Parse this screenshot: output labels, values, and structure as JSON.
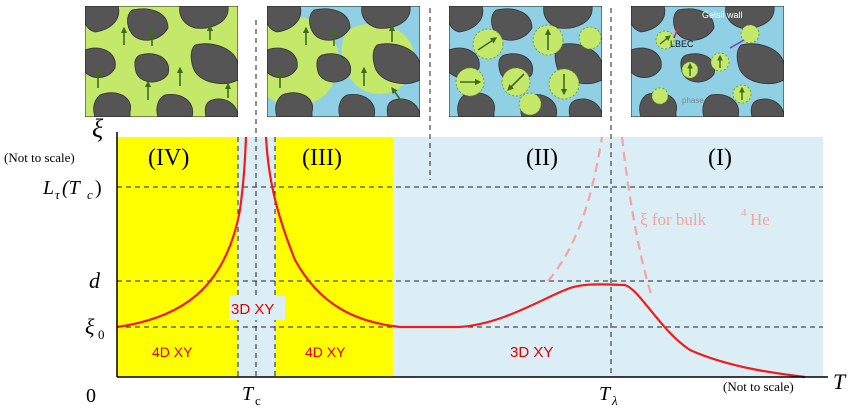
{
  "axes": {
    "y_symbol": "ξ",
    "y_note": "(Not to scale)",
    "x_symbol": "T",
    "x_note": "(Not to scale)",
    "origin": "0",
    "y_ticks": {
      "L_main": "L",
      "L_sub": "τ",
      "L_arg": "(T",
      "L_arg_sub": "c",
      "L_close": ")",
      "d": "d",
      "xi0_main": "ξ",
      "xi0_sub": "0"
    },
    "x_ticks": {
      "tc_main": "T",
      "tc_sub": "c",
      "tl_main": "T",
      "tl_sub": "λ"
    }
  },
  "regions": {
    "IV": "(IV)",
    "III": "(III)",
    "II": "(II)",
    "I": "(I)"
  },
  "labels": {
    "left_4dxy": "4D XY",
    "right_4dxy": "4D XY",
    "center_3dxy": "3D XY",
    "mid_3dxy": "3D XY",
    "bulk_prefix": "ξ for bulk",
    "bulk_sup": "4",
    "bulk_suffix": "He"
  },
  "insets": {
    "gelsil_wall": "Gelsil wall",
    "lbec": "LBEC",
    "phase": "phase"
  },
  "colors": {
    "yellow": "#ffff00",
    "light_blue": "#dbeef6",
    "curve": "#ee1c1c",
    "bulk_dashed": "#f4a5a0",
    "inset_green": "#c4e86a",
    "inset_blue": "#8fd0e4",
    "inset_rock": "#555555"
  }
}
